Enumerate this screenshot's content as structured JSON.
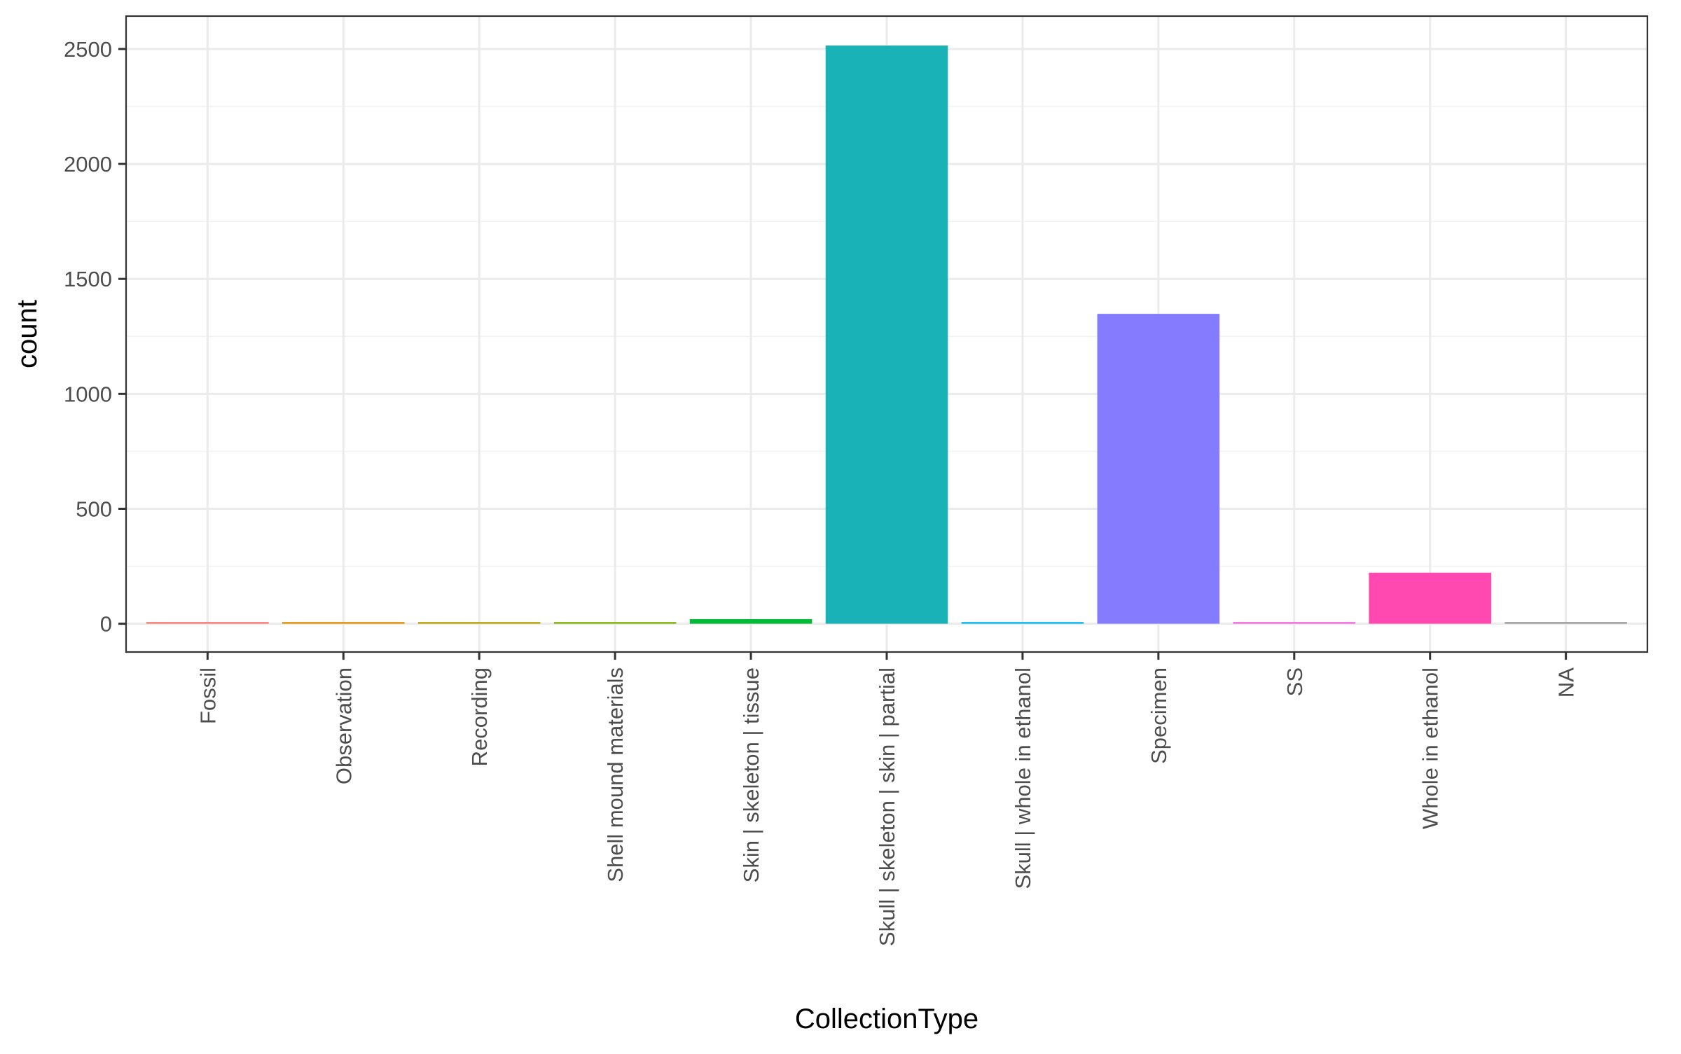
{
  "chart_data": {
    "type": "bar",
    "xlabel": "CollectionType",
    "ylabel": "count",
    "categories": [
      "Fossil",
      "Observation",
      "Recording",
      "Shell mound materials",
      "Skin | skeleton | tissue",
      "Skull | skeleton | skin | partial",
      "Skull | whole in ethanol",
      "Specimen",
      "SS",
      "Whole in ethanol",
      "NA"
    ],
    "values": [
      3,
      1,
      1,
      1,
      20,
      2515,
      3,
      1348,
      1,
      222,
      1
    ],
    "colors": [
      "#F8766D",
      "#DE8C00",
      "#B79F00",
      "#7CAE00",
      "#00BA38",
      "#19B2B6",
      "#00B4F0",
      "#857BFF",
      "#F564E3",
      "#FF48B0",
      "#999999"
    ],
    "ylim": [
      -123,
      2643
    ],
    "yticks": [
      0,
      500,
      1000,
      1500,
      2000,
      2500
    ],
    "grid": true,
    "legend": "none",
    "theme": "bw"
  }
}
